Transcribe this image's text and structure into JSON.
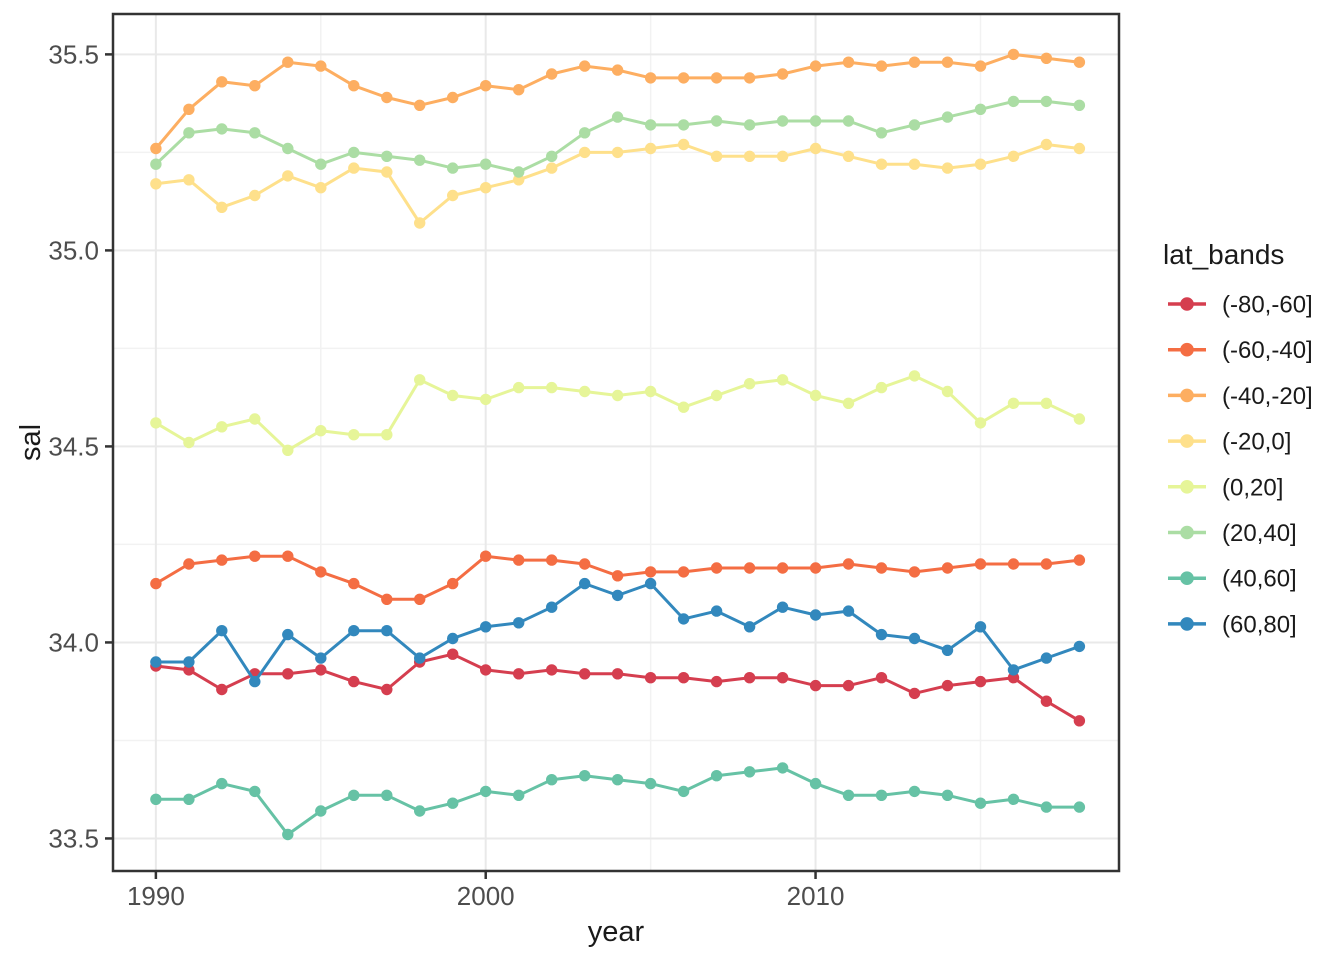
{
  "figure": {
    "background": "#FFFFFF"
  },
  "styles": {
    "panel_background": "#FFFFFF",
    "panel_border": "#333333",
    "grid_major_color": "#E9E9E9",
    "grid_minor_color": "#F2F2F2",
    "tick_color": "#333333",
    "axis_text_color": "#4D4D4D",
    "title_text_color": "#1A1A1A"
  },
  "chart_data": {
    "type": "line",
    "title": "",
    "xlabel": "year",
    "ylabel": "sal",
    "legend_title": "lat_bands",
    "legend_position": "right",
    "grid": true,
    "xlim": [
      1988.7,
      2019.2
    ],
    "ylim": [
      33.417,
      35.603
    ],
    "x_ticks": [
      1990,
      2000,
      2010
    ],
    "x_tick_labels": [
      "1990",
      "2000",
      "2010"
    ],
    "x_minor_ticks": [
      1995,
      2005,
      2015
    ],
    "y_ticks": [
      33.5,
      34.0,
      34.5,
      35.0,
      35.5
    ],
    "y_tick_labels": [
      "33.5",
      "34.0",
      "34.5",
      "35.0",
      "35.5"
    ],
    "y_minor_ticks": [
      33.75,
      34.25,
      34.75,
      35.25
    ],
    "x": [
      1990,
      1991,
      1992,
      1993,
      1994,
      1995,
      1996,
      1997,
      1998,
      1999,
      2000,
      2001,
      2002,
      2003,
      2004,
      2005,
      2006,
      2007,
      2008,
      2009,
      2010,
      2011,
      2012,
      2013,
      2014,
      2015,
      2016,
      2017,
      2018
    ],
    "series": [
      {
        "name": "(-80,-60]",
        "color": "#D53E4F",
        "values": [
          33.94,
          33.93,
          33.88,
          33.92,
          33.92,
          33.93,
          33.9,
          33.88,
          33.95,
          33.97,
          33.93,
          33.92,
          33.93,
          33.92,
          33.92,
          33.91,
          33.91,
          33.9,
          33.91,
          33.91,
          33.89,
          33.89,
          33.91,
          33.87,
          33.89,
          33.9,
          33.91,
          33.85,
          33.8
        ]
      },
      {
        "name": "(-60,-40]",
        "color": "#F46D43",
        "values": [
          34.15,
          34.2,
          34.21,
          34.22,
          34.22,
          34.18,
          34.15,
          34.11,
          34.11,
          34.15,
          34.22,
          34.21,
          34.21,
          34.2,
          34.17,
          34.18,
          34.18,
          34.19,
          34.19,
          34.19,
          34.19,
          34.2,
          34.19,
          34.18,
          34.19,
          34.2,
          34.2,
          34.2,
          34.21
        ]
      },
      {
        "name": "(-40,-20]",
        "color": "#FDAE61",
        "values": [
          35.26,
          35.36,
          35.43,
          35.42,
          35.48,
          35.47,
          35.42,
          35.39,
          35.37,
          35.39,
          35.42,
          35.41,
          35.45,
          35.47,
          35.46,
          35.44,
          35.44,
          35.44,
          35.44,
          35.45,
          35.47,
          35.48,
          35.47,
          35.48,
          35.48,
          35.47,
          35.5,
          35.49,
          35.48
        ]
      },
      {
        "name": "(-20,0]",
        "color": "#FEE08B",
        "values": [
          35.17,
          35.18,
          35.11,
          35.14,
          35.19,
          35.16,
          35.21,
          35.2,
          35.07,
          35.14,
          35.16,
          35.18,
          35.21,
          35.25,
          35.25,
          35.26,
          35.27,
          35.24,
          35.24,
          35.24,
          35.26,
          35.24,
          35.22,
          35.22,
          35.21,
          35.22,
          35.24,
          35.27,
          35.26
        ]
      },
      {
        "name": "(0,20]",
        "color": "#E6F598",
        "values": [
          34.56,
          34.51,
          34.55,
          34.57,
          34.49,
          34.54,
          34.53,
          34.53,
          34.67,
          34.63,
          34.62,
          34.65,
          34.65,
          34.64,
          34.63,
          34.64,
          34.6,
          34.63,
          34.66,
          34.67,
          34.63,
          34.61,
          34.65,
          34.68,
          34.64,
          34.56,
          34.61,
          34.61,
          34.57
        ]
      },
      {
        "name": "(20,40]",
        "color": "#ABDDA4",
        "values": [
          35.22,
          35.3,
          35.31,
          35.3,
          35.26,
          35.22,
          35.25,
          35.24,
          35.23,
          35.21,
          35.22,
          35.2,
          35.24,
          35.3,
          35.34,
          35.32,
          35.32,
          35.33,
          35.32,
          35.33,
          35.33,
          35.33,
          35.3,
          35.32,
          35.34,
          35.36,
          35.38,
          35.38,
          35.37
        ]
      },
      {
        "name": "(40,60]",
        "color": "#66C2A5",
        "values": [
          33.6,
          33.6,
          33.64,
          33.62,
          33.51,
          33.57,
          33.61,
          33.61,
          33.57,
          33.59,
          33.62,
          33.61,
          33.65,
          33.66,
          33.65,
          33.64,
          33.62,
          33.66,
          33.67,
          33.68,
          33.64,
          33.61,
          33.61,
          33.62,
          33.61,
          33.59,
          33.6,
          33.58,
          33.58
        ]
      },
      {
        "name": "(60,80]",
        "color": "#3288BD",
        "values": [
          33.95,
          33.95,
          34.03,
          33.9,
          34.02,
          33.96,
          34.03,
          34.03,
          33.96,
          34.01,
          34.04,
          34.05,
          34.09,
          34.15,
          34.12,
          34.15,
          34.06,
          34.08,
          34.04,
          34.09,
          34.07,
          34.08,
          34.02,
          34.01,
          33.98,
          34.04,
          33.93,
          33.96,
          33.99
        ]
      }
    ]
  }
}
